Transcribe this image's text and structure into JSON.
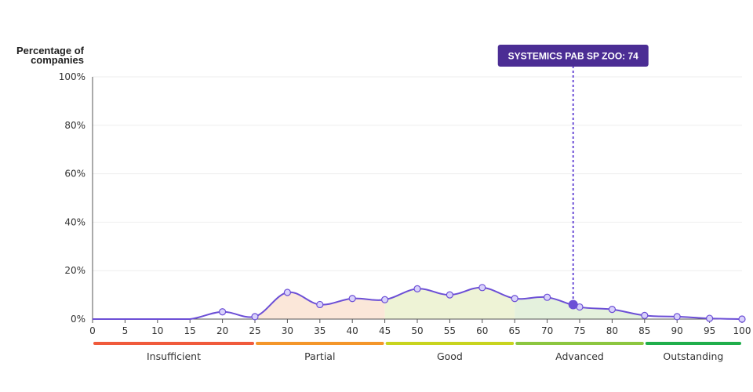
{
  "chart_data": {
    "type": "area",
    "ylabel_lines": [
      "Percentage of",
      "companies"
    ],
    "x": [
      0,
      5,
      10,
      15,
      20,
      25,
      30,
      35,
      40,
      45,
      50,
      55,
      60,
      65,
      70,
      75,
      80,
      85,
      90,
      95,
      100
    ],
    "values": [
      0,
      0,
      0,
      0,
      3,
      1,
      11,
      6,
      8.5,
      8,
      12.5,
      10,
      13,
      8.5,
      9,
      5,
      4,
      1.5,
      1,
      0.3,
      0
    ],
    "xlim": [
      0,
      100
    ],
    "ylim": [
      0,
      100
    ],
    "yticks": [
      0,
      20,
      40,
      60,
      80,
      100
    ],
    "ytick_labels": [
      "0%",
      "20%",
      "40%",
      "60%",
      "80%",
      "100%"
    ],
    "xticks": [
      0,
      5,
      10,
      15,
      20,
      25,
      30,
      35,
      40,
      45,
      50,
      55,
      60,
      65,
      70,
      75,
      80,
      85,
      90,
      95,
      100
    ],
    "grid": true,
    "bands": [
      {
        "label": "Insufficient",
        "from": 0,
        "to": 25,
        "color": "#f05a3c",
        "fill": "#ffffff"
      },
      {
        "label": "Partial",
        "from": 25,
        "to": 45,
        "color": "#f4962a",
        "fill": "#fbe7d9"
      },
      {
        "label": "Good",
        "from": 45,
        "to": 65,
        "color": "#c8d41e",
        "fill": "#eef3d6"
      },
      {
        "label": "Advanced",
        "from": 65,
        "to": 85,
        "color": "#8cc63f",
        "fill": "#e4f1dd"
      },
      {
        "label": "Outstanding",
        "from": 85,
        "to": 100,
        "color": "#1fae4b",
        "fill": "#ffffff"
      }
    ],
    "highlight": {
      "label": "SYSTEMICS PAB SP ZOO: 74",
      "x": 74,
      "y": 6
    },
    "colors": {
      "line": "#6c4fd6",
      "marker_fill": "#d9d2fb",
      "highlight": "#6c4fd6",
      "callout_bg": "#4b2d94",
      "grid": "#eeeeee",
      "axis": "#555555"
    }
  }
}
